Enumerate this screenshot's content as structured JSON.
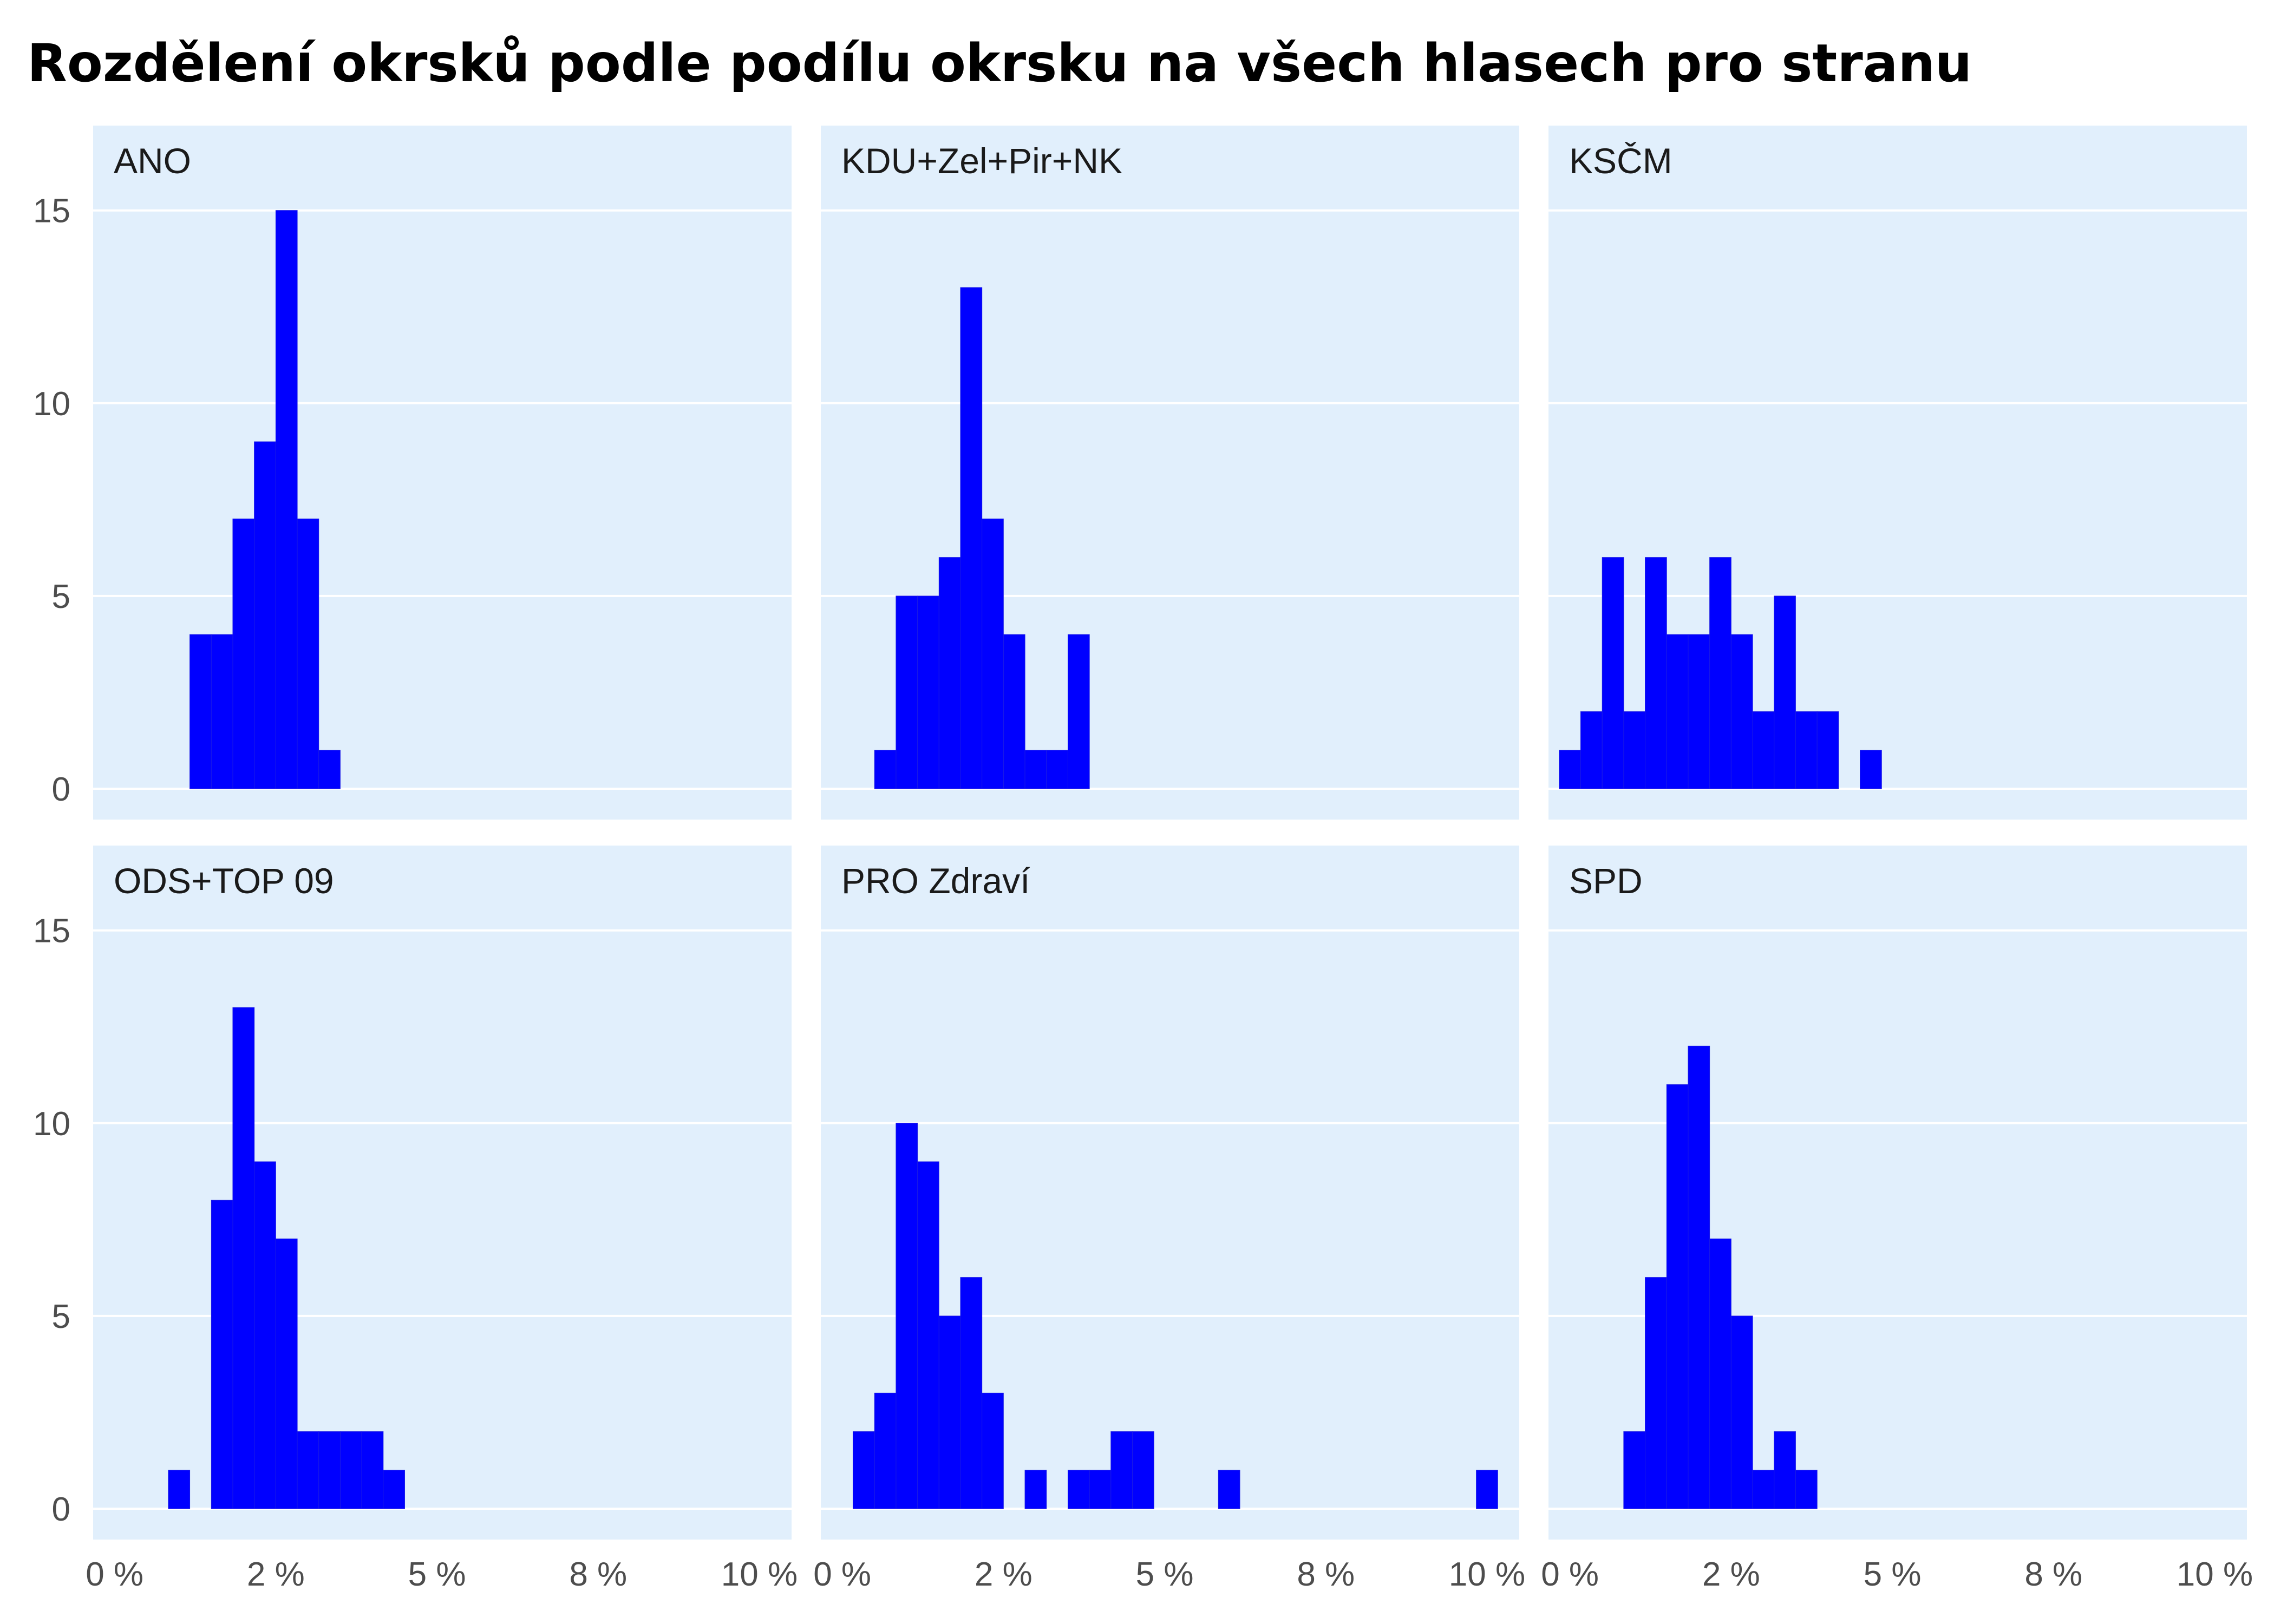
{
  "title": "Rozdělení okrsků podle podílu okrsku na všech hlasech pro stranu",
  "colors": {
    "panel_bg": "#e1effc",
    "grid": "#ffffff",
    "bar": "#0000ff",
    "text": "#000000",
    "tick": "#4d4d4d"
  },
  "chart_data": {
    "type": "bar",
    "subtype": "faceted-histogram",
    "bin_width_pct": 0.333,
    "x_ticks": [
      {
        "value": 0,
        "label": "0 %"
      },
      {
        "value": 2.5,
        "label": "2 %"
      },
      {
        "value": 5,
        "label": "5 %"
      },
      {
        "value": 7.5,
        "label": "8 %"
      },
      {
        "value": 10,
        "label": "10 %"
      }
    ],
    "y_ticks": [
      0,
      5,
      10,
      15
    ],
    "xlim": [
      -0.333,
      10.5
    ],
    "ylim": [
      -0.8,
      17.2
    ],
    "grid": true,
    "panels": [
      {
        "name": "ANO",
        "bins": [
          {
            "x": 1.333,
            "y": 4
          },
          {
            "x": 1.667,
            "y": 4
          },
          {
            "x": 2.0,
            "y": 7
          },
          {
            "x": 2.333,
            "y": 9
          },
          {
            "x": 2.667,
            "y": 15
          },
          {
            "x": 3.0,
            "y": 7
          },
          {
            "x": 3.333,
            "y": 1
          }
        ]
      },
      {
        "name": "KDU+Zel+Pir+NK",
        "bins": [
          {
            "x": 0.667,
            "y": 1
          },
          {
            "x": 1.0,
            "y": 5
          },
          {
            "x": 1.333,
            "y": 5
          },
          {
            "x": 1.667,
            "y": 6
          },
          {
            "x": 2.0,
            "y": 13
          },
          {
            "x": 2.333,
            "y": 7
          },
          {
            "x": 2.667,
            "y": 4
          },
          {
            "x": 3.0,
            "y": 1
          },
          {
            "x": 3.333,
            "y": 1
          },
          {
            "x": 3.667,
            "y": 4
          }
        ]
      },
      {
        "name": "KSČM",
        "bins": [
          {
            "x": 0.0,
            "y": 1
          },
          {
            "x": 0.333,
            "y": 2
          },
          {
            "x": 0.667,
            "y": 6
          },
          {
            "x": 1.0,
            "y": 2
          },
          {
            "x": 1.333,
            "y": 6
          },
          {
            "x": 1.667,
            "y": 4
          },
          {
            "x": 2.0,
            "y": 4
          },
          {
            "x": 2.333,
            "y": 6
          },
          {
            "x": 2.667,
            "y": 4
          },
          {
            "x": 3.0,
            "y": 2
          },
          {
            "x": 3.333,
            "y": 5
          },
          {
            "x": 3.667,
            "y": 2
          },
          {
            "x": 4.0,
            "y": 2
          },
          {
            "x": 4.667,
            "y": 1
          }
        ]
      },
      {
        "name": "ODS+TOP 09",
        "bins": [
          {
            "x": 1.0,
            "y": 1
          },
          {
            "x": 1.667,
            "y": 8
          },
          {
            "x": 2.0,
            "y": 13
          },
          {
            "x": 2.333,
            "y": 9
          },
          {
            "x": 2.667,
            "y": 7
          },
          {
            "x": 3.0,
            "y": 2
          },
          {
            "x": 3.333,
            "y": 2
          },
          {
            "x": 3.667,
            "y": 2
          },
          {
            "x": 4.0,
            "y": 2
          },
          {
            "x": 4.333,
            "y": 1
          }
        ]
      },
      {
        "name": "PRO Zdraví",
        "bins": [
          {
            "x": 0.333,
            "y": 2
          },
          {
            "x": 0.667,
            "y": 3
          },
          {
            "x": 1.0,
            "y": 10
          },
          {
            "x": 1.333,
            "y": 9
          },
          {
            "x": 1.667,
            "y": 5
          },
          {
            "x": 2.0,
            "y": 6
          },
          {
            "x": 2.333,
            "y": 3
          },
          {
            "x": 3.0,
            "y": 1
          },
          {
            "x": 3.667,
            "y": 1
          },
          {
            "x": 4.0,
            "y": 1
          },
          {
            "x": 4.333,
            "y": 2
          },
          {
            "x": 4.667,
            "y": 2
          },
          {
            "x": 6.0,
            "y": 1
          },
          {
            "x": 10.0,
            "y": 1
          }
        ]
      },
      {
        "name": "SPD",
        "bins": [
          {
            "x": 1.0,
            "y": 2
          },
          {
            "x": 1.333,
            "y": 6
          },
          {
            "x": 1.667,
            "y": 11
          },
          {
            "x": 2.0,
            "y": 12
          },
          {
            "x": 2.333,
            "y": 7
          },
          {
            "x": 2.667,
            "y": 5
          },
          {
            "x": 3.0,
            "y": 1
          },
          {
            "x": 3.333,
            "y": 2
          },
          {
            "x": 3.667,
            "y": 1
          }
        ]
      }
    ]
  }
}
